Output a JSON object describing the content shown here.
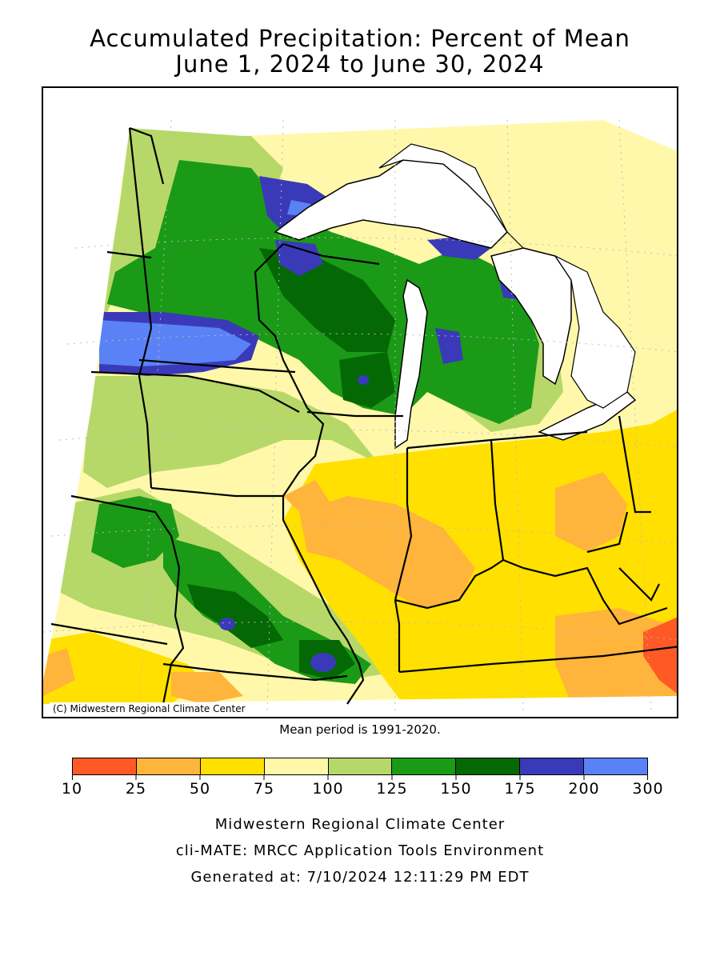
{
  "title_line1": "Accumulated Precipitation: Percent of Mean",
  "title_line2": "June 1, 2024 to June 30, 2024",
  "copyright": "(C) Midwestern Regional Climate Center",
  "mean_period": "Mean period is 1991-2020.",
  "legend": {
    "ticks": [
      "10",
      "25",
      "50",
      "75",
      "100",
      "125",
      "150",
      "175",
      "200",
      "300"
    ],
    "bins": [
      {
        "range": "10-25",
        "color": "#ff5a26"
      },
      {
        "range": "25-50",
        "color": "#ffb43c"
      },
      {
        "range": "50-75",
        "color": "#ffe000"
      },
      {
        "range": "75-100",
        "color": "#fff8aa"
      },
      {
        "range": "100-125",
        "color": "#b6d868"
      },
      {
        "range": "125-150",
        "color": "#1a9a16"
      },
      {
        "range": "150-175",
        "color": "#046804"
      },
      {
        "range": "175-200",
        "color": "#3a3ab8"
      },
      {
        "range": "200-300",
        "color": "#5a82f6"
      }
    ]
  },
  "footer": {
    "line1": "Midwestern Regional Climate Center",
    "line2": "cli-MATE: MRCC Application Tools Environment",
    "line3": "Generated at: 7/10/2024 12:11:29 PM EDT"
  },
  "colors": {
    "lake": "#ffffff",
    "outline": "#000000",
    "graticule": "#bbbbbb"
  }
}
